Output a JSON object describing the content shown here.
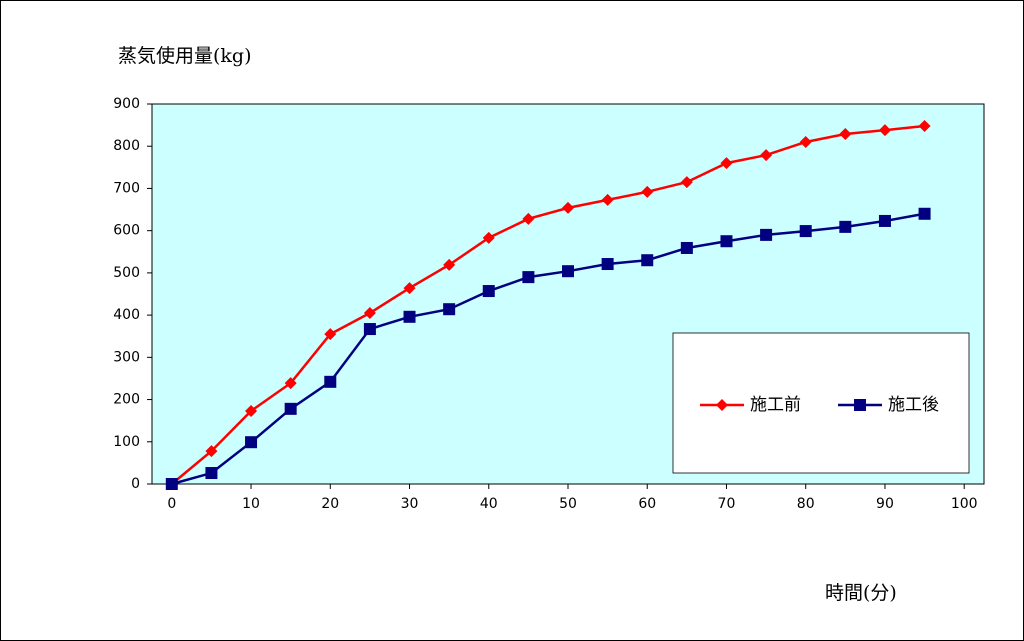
{
  "chart_data": {
    "type": "line",
    "y_axis_title": "蒸気使用量(kg)",
    "x_axis_title": "時間(分)",
    "x": [
      0,
      5,
      10,
      15,
      20,
      25,
      30,
      35,
      40,
      45,
      50,
      55,
      60,
      65,
      70,
      75,
      80,
      85,
      90,
      95
    ],
    "series": [
      {
        "name": "施工前",
        "color": "#ff0000",
        "marker": "diamond",
        "values": [
          0,
          78,
          173,
          239,
          355,
          405,
          464,
          519,
          583,
          628,
          654,
          673,
          692,
          715,
          760,
          779,
          810,
          829,
          838,
          848
        ]
      },
      {
        "name": "施工後",
        "color": "#000080",
        "marker": "square",
        "values": [
          0,
          26,
          99,
          178,
          242,
          367,
          396,
          414,
          457,
          490,
          504,
          521,
          530,
          559,
          575,
          590,
          599,
          609,
          623,
          640
        ]
      }
    ],
    "xlim": [
      -2.5,
      102.5
    ],
    "xticks": [
      0,
      10,
      20,
      30,
      40,
      50,
      60,
      70,
      80,
      90,
      100
    ],
    "ylim": [
      0,
      900
    ],
    "yticks": [
      0,
      100,
      200,
      300,
      400,
      500,
      600,
      700,
      800,
      900
    ],
    "plot_background": "#ccffff"
  }
}
